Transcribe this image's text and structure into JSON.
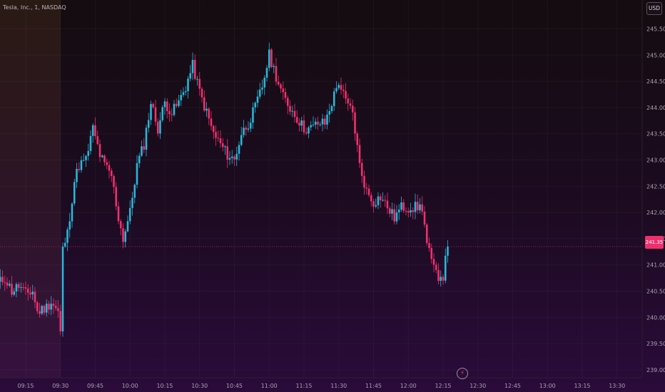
{
  "header": {
    "title": "Tesla, Inc., 1, NASDAQ",
    "currency": "USD"
  },
  "last_price_label": "241.35",
  "colors": {
    "up": "#2bb6d6",
    "down": "#f0306c",
    "priceLine": "#f0306c"
  },
  "icons": {
    "goto_realtime": "lightning-bolt-icon"
  },
  "chart_data": {
    "type": "candlestick",
    "title": "Tesla, Inc., 1, NASDAQ",
    "ylim": [
      238.85,
      246.05
    ],
    "y_ticks": [
      "239.00",
      "239.50",
      "240.00",
      "240.50",
      "241.00",
      "241.50",
      "242.00",
      "242.50",
      "243.00",
      "243.50",
      "244.00",
      "244.50",
      "245.00",
      "245.50"
    ],
    "x_ticks": [
      "09:15",
      "09:30",
      "09:45",
      "10:00",
      "10:15",
      "10:30",
      "10:45",
      "11:00",
      "11:15",
      "11:30",
      "11:45",
      "12:00",
      "12:15",
      "12:30",
      "12:45",
      "13:00",
      "13:15",
      "13:30"
    ],
    "last_price": 241.35,
    "anchors": [
      {
        "t": "09:03",
        "p": 240.65
      },
      {
        "t": "09:06",
        "p": 240.75
      },
      {
        "t": "09:09",
        "p": 240.5
      },
      {
        "t": "09:12",
        "p": 240.6
      },
      {
        "t": "09:15",
        "p": 240.45
      },
      {
        "t": "09:18",
        "p": 240.5
      },
      {
        "t": "09:20",
        "p": 240.1
      },
      {
        "t": "09:24",
        "p": 240.2
      },
      {
        "t": "09:26",
        "p": 240.3
      },
      {
        "t": "09:29",
        "p": 240.1
      },
      {
        "t": "09:30",
        "p": 239.7
      },
      {
        "t": "09:31",
        "p": 241.3
      },
      {
        "t": "09:33",
        "p": 241.6
      },
      {
        "t": "09:36",
        "p": 242.6
      },
      {
        "t": "09:38",
        "p": 242.9
      },
      {
        "t": "09:41",
        "p": 243.0
      },
      {
        "t": "09:44",
        "p": 243.6
      },
      {
        "t": "09:47",
        "p": 243.1
      },
      {
        "t": "09:49",
        "p": 242.9
      },
      {
        "t": "09:52",
        "p": 242.7
      },
      {
        "t": "09:55",
        "p": 241.9
      },
      {
        "t": "09:57",
        "p": 241.5
      },
      {
        "t": "10:00",
        "p": 242.0
      },
      {
        "t": "10:03",
        "p": 242.9
      },
      {
        "t": "10:06",
        "p": 243.3
      },
      {
        "t": "10:09",
        "p": 244.1
      },
      {
        "t": "10:12",
        "p": 243.6
      },
      {
        "t": "10:15",
        "p": 244.1
      },
      {
        "t": "10:18",
        "p": 243.9
      },
      {
        "t": "10:21",
        "p": 244.1
      },
      {
        "t": "10:24",
        "p": 244.4
      },
      {
        "t": "10:27",
        "p": 244.8
      },
      {
        "t": "10:30",
        "p": 244.3
      },
      {
        "t": "10:33",
        "p": 243.9
      },
      {
        "t": "10:36",
        "p": 243.5
      },
      {
        "t": "10:39",
        "p": 243.3
      },
      {
        "t": "10:42",
        "p": 243.1
      },
      {
        "t": "10:45",
        "p": 243.0
      },
      {
        "t": "10:48",
        "p": 243.5
      },
      {
        "t": "10:51",
        "p": 243.7
      },
      {
        "t": "10:54",
        "p": 244.0
      },
      {
        "t": "10:57",
        "p": 244.4
      },
      {
        "t": "11:00",
        "p": 245.0
      },
      {
        "t": "11:03",
        "p": 244.6
      },
      {
        "t": "11:06",
        "p": 244.2
      },
      {
        "t": "11:09",
        "p": 244.0
      },
      {
        "t": "11:12",
        "p": 243.8
      },
      {
        "t": "11:15",
        "p": 243.6
      },
      {
        "t": "11:18",
        "p": 243.6
      },
      {
        "t": "11:21",
        "p": 243.7
      },
      {
        "t": "11:24",
        "p": 243.7
      },
      {
        "t": "11:27",
        "p": 244.1
      },
      {
        "t": "11:30",
        "p": 244.5
      },
      {
        "t": "11:33",
        "p": 244.1
      },
      {
        "t": "11:36",
        "p": 243.9
      },
      {
        "t": "11:39",
        "p": 242.9
      },
      {
        "t": "11:42",
        "p": 242.4
      },
      {
        "t": "11:45",
        "p": 242.2
      },
      {
        "t": "11:48",
        "p": 242.3
      },
      {
        "t": "11:51",
        "p": 242.1
      },
      {
        "t": "11:54",
        "p": 241.9
      },
      {
        "t": "11:57",
        "p": 242.1
      },
      {
        "t": "12:00",
        "p": 242.1
      },
      {
        "t": "12:03",
        "p": 242.1
      },
      {
        "t": "12:06",
        "p": 242.1
      },
      {
        "t": "12:08",
        "p": 241.4
      },
      {
        "t": "12:11",
        "p": 240.9
      },
      {
        "t": "12:13",
        "p": 240.8
      },
      {
        "t": "12:15",
        "p": 240.8
      },
      {
        "t": "12:17",
        "p": 241.35
      }
    ]
  }
}
